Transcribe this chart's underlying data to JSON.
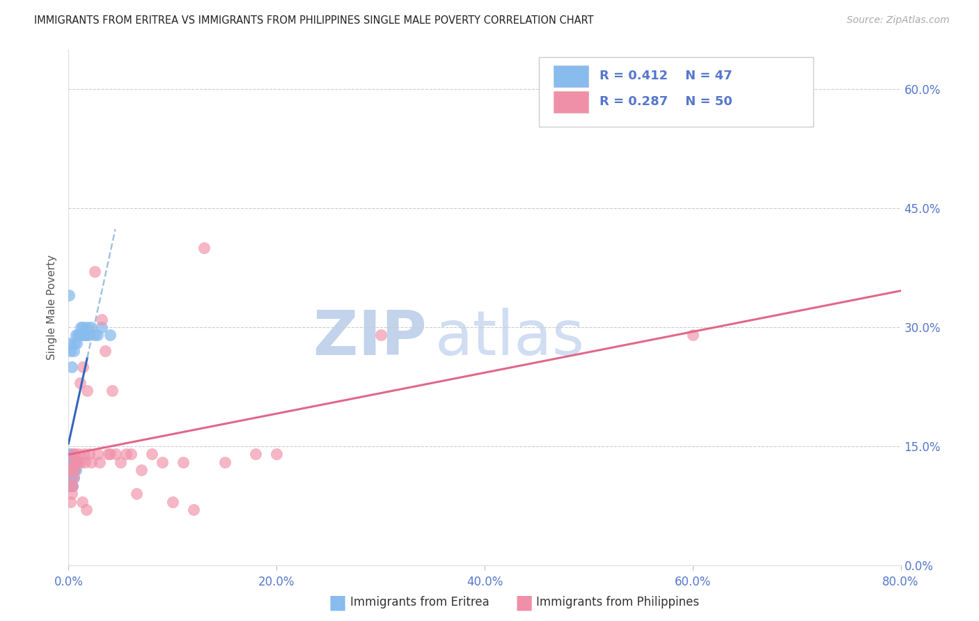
{
  "title": "IMMIGRANTS FROM ERITREA VS IMMIGRANTS FROM PHILIPPINES SINGLE MALE POVERTY CORRELATION CHART",
  "source": "Source: ZipAtlas.com",
  "ylabel": "Single Male Poverty",
  "watermark_zip": "ZIP",
  "watermark_atlas": "atlas",
  "legend_eritrea": "Immigrants from Eritrea",
  "legend_philippines": "Immigrants from Philippines",
  "R_eritrea": 0.412,
  "N_eritrea": 47,
  "R_philippines": 0.287,
  "N_philippines": 50,
  "color_eritrea": "#88bbee",
  "color_philippines": "#f090a8",
  "color_eritrea_line_solid": "#3366bb",
  "color_eritrea_line_dash": "#99bbdd",
  "color_philippines_line": "#e06888",
  "color_axis_text": "#5577cc",
  "color_title": "#222222",
  "color_source": "#aaaaaa",
  "color_ylabel": "#555555",
  "color_grid": "#cccccc",
  "color_watermark_zip": "#b8cce8",
  "color_watermark_atlas": "#c8d8f0",
  "color_legend_border": "#cccccc",
  "xlim": [
    0.0,
    0.8
  ],
  "ylim": [
    0.0,
    0.65
  ],
  "yticks": [
    0.0,
    0.15,
    0.3,
    0.45,
    0.6
  ],
  "xticks": [
    0.0,
    0.2,
    0.4,
    0.6,
    0.8
  ],
  "eritrea_x": [
    0.0003,
    0.0005,
    0.0007,
    0.001,
    0.001,
    0.001,
    0.001,
    0.001,
    0.001,
    0.0015,
    0.002,
    0.002,
    0.002,
    0.002,
    0.002,
    0.003,
    0.003,
    0.003,
    0.003,
    0.004,
    0.004,
    0.004,
    0.005,
    0.005,
    0.005,
    0.006,
    0.006,
    0.007,
    0.007,
    0.008,
    0.008,
    0.009,
    0.01,
    0.011,
    0.012,
    0.013,
    0.014,
    0.015,
    0.016,
    0.017,
    0.018,
    0.02,
    0.022,
    0.025,
    0.028,
    0.032,
    0.04
  ],
  "eritrea_y": [
    0.34,
    0.1,
    0.1,
    0.1,
    0.11,
    0.12,
    0.13,
    0.14,
    0.28,
    0.1,
    0.1,
    0.11,
    0.13,
    0.14,
    0.27,
    0.1,
    0.11,
    0.13,
    0.25,
    0.1,
    0.12,
    0.13,
    0.11,
    0.12,
    0.27,
    0.12,
    0.28,
    0.12,
    0.29,
    0.13,
    0.28,
    0.29,
    0.29,
    0.29,
    0.3,
    0.29,
    0.3,
    0.29,
    0.29,
    0.29,
    0.3,
    0.29,
    0.3,
    0.29,
    0.29,
    0.3,
    0.29
  ],
  "philippines_x": [
    0.001,
    0.002,
    0.002,
    0.003,
    0.003,
    0.004,
    0.004,
    0.005,
    0.005,
    0.006,
    0.006,
    0.007,
    0.008,
    0.009,
    0.01,
    0.011,
    0.012,
    0.013,
    0.014,
    0.015,
    0.016,
    0.017,
    0.018,
    0.02,
    0.022,
    0.025,
    0.028,
    0.03,
    0.032,
    0.035,
    0.038,
    0.04,
    0.042,
    0.045,
    0.05,
    0.055,
    0.06,
    0.065,
    0.07,
    0.08,
    0.09,
    0.1,
    0.11,
    0.12,
    0.13,
    0.15,
    0.18,
    0.2,
    0.3,
    0.6
  ],
  "philippines_y": [
    0.12,
    0.1,
    0.08,
    0.12,
    0.09,
    0.13,
    0.1,
    0.14,
    0.11,
    0.14,
    0.12,
    0.13,
    0.13,
    0.13,
    0.14,
    0.23,
    0.13,
    0.08,
    0.25,
    0.14,
    0.13,
    0.07,
    0.22,
    0.14,
    0.13,
    0.37,
    0.14,
    0.13,
    0.31,
    0.27,
    0.14,
    0.14,
    0.22,
    0.14,
    0.13,
    0.14,
    0.14,
    0.09,
    0.12,
    0.14,
    0.13,
    0.08,
    0.13,
    0.07,
    0.4,
    0.13,
    0.14,
    0.14,
    0.29,
    0.29
  ]
}
